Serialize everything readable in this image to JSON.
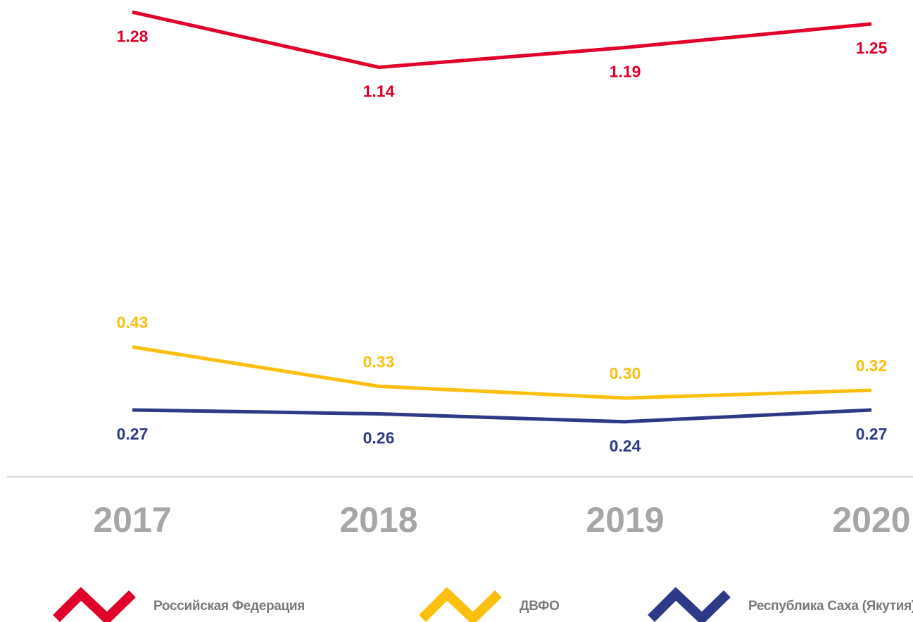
{
  "chart_data": {
    "type": "line",
    "categories": [
      "2017",
      "2018",
      "2019",
      "2020"
    ],
    "series": [
      {
        "name": "Российская Федерация",
        "color": "#e0002a",
        "values": [
          1.28,
          1.14,
          1.19,
          1.25
        ],
        "value_labels": [
          "1.28",
          "1.14",
          "1.19",
          "1.25"
        ]
      },
      {
        "name": "ДВФО",
        "color": "#fbbf0f",
        "values": [
          0.43,
          0.33,
          0.3,
          0.32
        ],
        "value_labels": [
          "0.43",
          "0.33",
          "0.30",
          "0.32"
        ]
      },
      {
        "name": "Республика Саха (Якутия)",
        "color": "#2e3a87",
        "values": [
          0.27,
          0.26,
          0.24,
          0.27
        ],
        "value_labels": [
          "0.27",
          "0.26",
          "0.24",
          "0.27"
        ]
      }
    ],
    "ylim": [
      0.1,
      1.3
    ]
  }
}
